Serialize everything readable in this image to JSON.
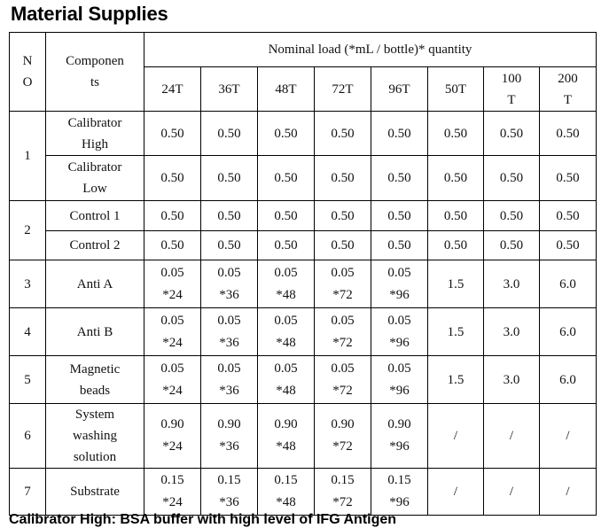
{
  "title": "Material Supplies",
  "header": {
    "no_label": "N\nO",
    "components_label": "Componen\nts",
    "group_label": "Nominal load (*mL / bottle)* quantity",
    "columns": [
      "24T",
      "36T",
      "48T",
      "72T",
      "96T",
      "50T",
      "100\nT",
      "200\nT"
    ]
  },
  "rows": [
    {
      "no": "1",
      "component": "Calibrator\nHigh",
      "values": [
        "0.50",
        "0.50",
        "0.50",
        "0.50",
        "0.50",
        "0.50",
        "0.50",
        "0.50"
      ]
    },
    {
      "component": "Calibrator\nLow",
      "values": [
        "0.50",
        "0.50",
        "0.50",
        "0.50",
        "0.50",
        "0.50",
        "0.50",
        "0.50"
      ]
    },
    {
      "no": "2",
      "component": "Control 1",
      "values": [
        "0.50",
        "0.50",
        "0.50",
        "0.50",
        "0.50",
        "0.50",
        "0.50",
        "0.50"
      ]
    },
    {
      "component": "Control 2",
      "values": [
        "0.50",
        "0.50",
        "0.50",
        "0.50",
        "0.50",
        "0.50",
        "0.50",
        "0.50"
      ]
    },
    {
      "no": "3",
      "component": "Anti A",
      "values": [
        "0.05\n*24",
        "0.05\n*36",
        "0.05\n*48",
        "0.05\n*72",
        "0.05\n*96",
        "1.5",
        "3.0",
        "6.0"
      ]
    },
    {
      "no": "4",
      "component": "Anti B",
      "values": [
        "0.05\n*24",
        "0.05\n*36",
        "0.05\n*48",
        "0.05\n*72",
        "0.05\n*96",
        "1.5",
        "3.0",
        "6.0"
      ]
    },
    {
      "no": "5",
      "component": "Magnetic\nbeads",
      "values": [
        "0.05\n*24",
        "0.05\n*36",
        "0.05\n*48",
        "0.05\n*72",
        "0.05\n*96",
        "1.5",
        "3.0",
        "6.0"
      ]
    },
    {
      "no": "6",
      "component": "System\nwashing\nsolution",
      "values": [
        "0.90\n*24",
        "0.90\n*36",
        "0.90\n*48",
        "0.90\n*72",
        "0.90\n*96",
        "/",
        "/",
        "/"
      ]
    },
    {
      "no": "7",
      "component": "Substrate",
      "values": [
        "0.15\n*24",
        "0.15\n*36",
        "0.15\n*48",
        "0.15\n*72",
        "0.15\n*96",
        "/",
        "/",
        "/"
      ]
    }
  ],
  "footer_text": "Calibrator High: BSA buffer with high level of IFG Antigen"
}
